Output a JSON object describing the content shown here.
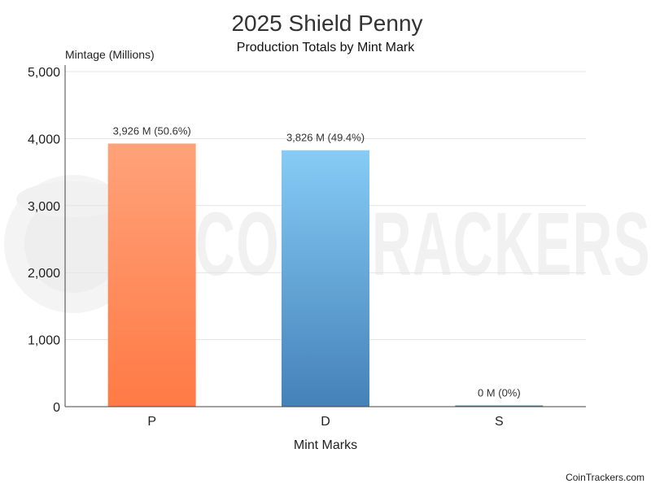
{
  "chart_data": {
    "type": "bar",
    "title": "2025 Shield Penny",
    "subtitle": "Production Totals by Mint Mark",
    "ylabel": "Mintage (Millions)",
    "xlabel": "Mint Marks",
    "categories": [
      "P",
      "D",
      "S"
    ],
    "values": [
      3926,
      3826,
      0
    ],
    "data_labels": [
      "3,926 M (50.6%)",
      "3,826 M (49.4%)",
      "0 M (0%)"
    ],
    "ylim": [
      0,
      5000
    ],
    "yticks": [
      0,
      1000,
      2000,
      3000,
      4000,
      5000
    ],
    "ytick_labels": [
      "0",
      "1,000",
      "2,000",
      "3,000",
      "4,000",
      "5,000"
    ],
    "grid": true,
    "bar_colors": [
      {
        "top": "#ffa27a",
        "bottom": "#ff7a45"
      },
      {
        "top": "#86ccf6",
        "bottom": "#4481b8"
      },
      {
        "top": "#5b8fa8",
        "bottom": "#3f7590"
      }
    ]
  },
  "watermark": {
    "logo": "cointrackers-mascot-icon",
    "text": "COINTRACKERS"
  },
  "credit": "CoinTrackers.com"
}
